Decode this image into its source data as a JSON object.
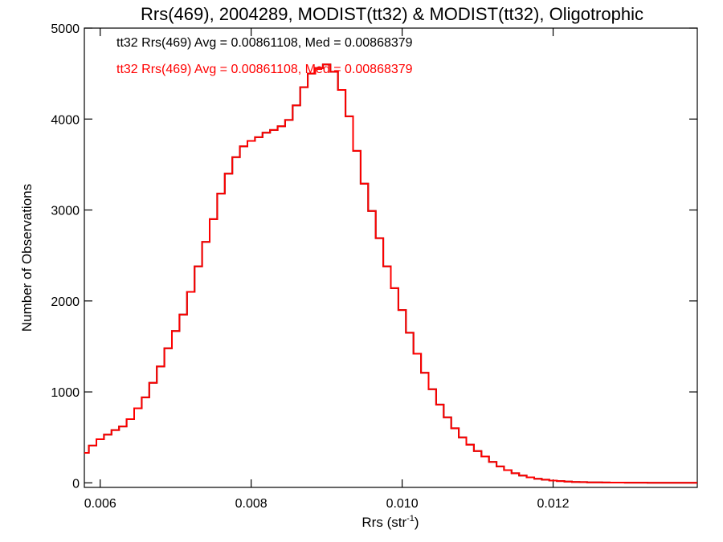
{
  "chart_data": {
    "type": "line",
    "title": "Rrs(469), 2004289, MODIST(tt32) & MODIST(tt32), Oligotrophic",
    "xlabel": "Rrs (str",
    "xlabel_sup": "-1",
    "xlabel_close": ")",
    "ylabel": "Number of Observations",
    "xlim": [
      0.00579,
      0.01391
    ],
    "ylim": [
      -50,
      5000
    ],
    "xticks": [
      0.006,
      0.008,
      0.01,
      0.012
    ],
    "xtick_labels": [
      "0.006",
      "0.008",
      "0.010",
      "0.012"
    ],
    "yticks": [
      0,
      1000,
      2000,
      3000,
      4000,
      5000
    ],
    "ytick_labels": [
      "0",
      "1000",
      "2000",
      "3000",
      "4000",
      "5000"
    ],
    "grid": false,
    "legend_position": "top-left",
    "series": [
      {
        "name": "tt32 Rrs(469) Avg = 0.00861108, Med = 0.00868379",
        "color": "#000000",
        "x": [
          0.0058,
          0.0059,
          0.006,
          0.0061,
          0.0062,
          0.0063,
          0.0064,
          0.0065,
          0.0066,
          0.0067,
          0.0068,
          0.0069,
          0.007,
          0.0071,
          0.0072,
          0.0073,
          0.0074,
          0.0075,
          0.0076,
          0.0077,
          0.0078,
          0.0079,
          0.008,
          0.0081,
          0.0082,
          0.0083,
          0.0084,
          0.0085,
          0.0086,
          0.0087,
          0.0088,
          0.0089,
          0.009,
          0.0091,
          0.0092,
          0.0093,
          0.0094,
          0.0095,
          0.0096,
          0.0097,
          0.0098,
          0.0099,
          0.01,
          0.0101,
          0.0102,
          0.0103,
          0.0104,
          0.0105,
          0.0106,
          0.0107,
          0.0108,
          0.0109,
          0.011,
          0.0111,
          0.0112,
          0.0113,
          0.0114,
          0.0115,
          0.0116,
          0.0117,
          0.0118,
          0.0119,
          0.012,
          0.0121,
          0.0122,
          0.0123,
          0.0124,
          0.0125,
          0.0126,
          0.0127,
          0.0128,
          0.0129,
          0.013,
          0.0131,
          0.0132,
          0.0133,
          0.0134,
          0.0135,
          0.0136,
          0.0137,
          0.0138,
          0.0139
        ],
        "values": [
          330,
          410,
          480,
          530,
          580,
          620,
          700,
          820,
          940,
          1100,
          1280,
          1480,
          1670,
          1850,
          2100,
          2380,
          2650,
          2900,
          3180,
          3400,
          3580,
          3700,
          3760,
          3800,
          3850,
          3880,
          3920,
          3990,
          4150,
          4350,
          4500,
          4560,
          4600,
          4520,
          4320,
          4030,
          3650,
          3290,
          2990,
          2690,
          2380,
          2140,
          1900,
          1650,
          1420,
          1210,
          1030,
          860,
          720,
          600,
          500,
          420,
          350,
          290,
          230,
          180,
          140,
          105,
          80,
          60,
          45,
          35,
          25,
          20,
          14,
          10,
          8,
          6,
          5,
          4,
          3,
          3,
          2,
          2,
          2,
          1,
          1,
          1,
          1,
          1,
          1,
          1
        ]
      },
      {
        "name": "tt32 Rrs(469) Avg = 0.00861108, Med = 0.00868379",
        "color": "#ff0000",
        "x": [
          0.0058,
          0.0059,
          0.006,
          0.0061,
          0.0062,
          0.0063,
          0.0064,
          0.0065,
          0.0066,
          0.0067,
          0.0068,
          0.0069,
          0.007,
          0.0071,
          0.0072,
          0.0073,
          0.0074,
          0.0075,
          0.0076,
          0.0077,
          0.0078,
          0.0079,
          0.008,
          0.0081,
          0.0082,
          0.0083,
          0.0084,
          0.0085,
          0.0086,
          0.0087,
          0.0088,
          0.0089,
          0.009,
          0.0091,
          0.0092,
          0.0093,
          0.0094,
          0.0095,
          0.0096,
          0.0097,
          0.0098,
          0.0099,
          0.01,
          0.0101,
          0.0102,
          0.0103,
          0.0104,
          0.0105,
          0.0106,
          0.0107,
          0.0108,
          0.0109,
          0.011,
          0.0111,
          0.0112,
          0.0113,
          0.0114,
          0.0115,
          0.0116,
          0.0117,
          0.0118,
          0.0119,
          0.012,
          0.0121,
          0.0122,
          0.0123,
          0.0124,
          0.0125,
          0.0126,
          0.0127,
          0.0128,
          0.0129,
          0.013,
          0.0131,
          0.0132,
          0.0133,
          0.0134,
          0.0135,
          0.0136,
          0.0137,
          0.0138,
          0.0139
        ],
        "values": [
          330,
          410,
          480,
          530,
          580,
          620,
          700,
          820,
          940,
          1100,
          1280,
          1480,
          1670,
          1850,
          2100,
          2380,
          2650,
          2900,
          3180,
          3400,
          3580,
          3700,
          3760,
          3800,
          3850,
          3880,
          3920,
          3990,
          4150,
          4350,
          4500,
          4560,
          4600,
          4520,
          4320,
          4030,
          3650,
          3290,
          2990,
          2690,
          2380,
          2140,
          1900,
          1650,
          1420,
          1210,
          1030,
          860,
          720,
          600,
          500,
          420,
          350,
          290,
          230,
          180,
          140,
          105,
          80,
          60,
          45,
          35,
          25,
          20,
          14,
          10,
          8,
          6,
          5,
          4,
          3,
          3,
          2,
          2,
          2,
          1,
          1,
          1,
          1,
          1,
          1,
          1
        ]
      }
    ]
  }
}
